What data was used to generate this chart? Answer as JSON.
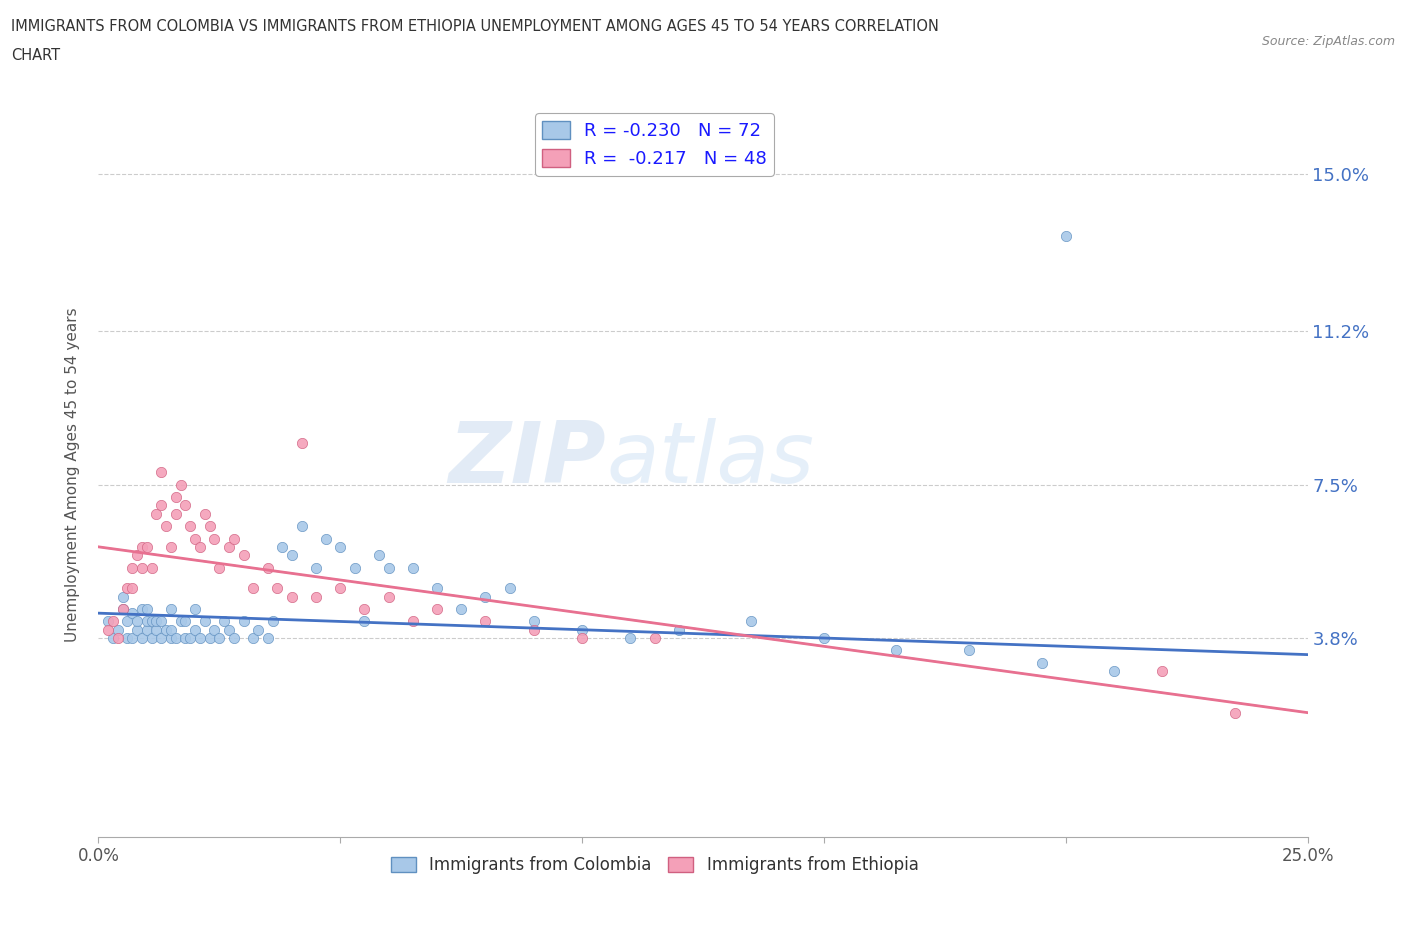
{
  "title_line1": "IMMIGRANTS FROM COLOMBIA VS IMMIGRANTS FROM ETHIOPIA UNEMPLOYMENT AMONG AGES 45 TO 54 YEARS CORRELATION",
  "title_line2": "CHART",
  "source": "Source: ZipAtlas.com",
  "ylabel": "Unemployment Among Ages 45 to 54 years",
  "xlim": [
    0.0,
    0.25
  ],
  "ylim": [
    -0.01,
    0.165
  ],
  "yticks": [
    0.038,
    0.075,
    0.112,
    0.15
  ],
  "ytick_labels": [
    "3.8%",
    "7.5%",
    "11.2%",
    "15.0%"
  ],
  "r_colombia": -0.23,
  "n_colombia": 72,
  "r_ethiopia": -0.217,
  "n_ethiopia": 48,
  "color_colombia": "#a8c8e8",
  "color_ethiopia": "#f4a0b8",
  "edge_colombia": "#6090c0",
  "edge_ethiopia": "#d06080",
  "trendline_colombia": "#4472c4",
  "trendline_ethiopia": "#e87090",
  "trendline_dashed": "#b0b8c8",
  "legend_colombia": "Immigrants from Colombia",
  "legend_ethiopia": "Immigrants from Ethiopia",
  "colombia_x": [
    0.002,
    0.003,
    0.004,
    0.005,
    0.005,
    0.006,
    0.006,
    0.007,
    0.007,
    0.008,
    0.008,
    0.009,
    0.009,
    0.01,
    0.01,
    0.01,
    0.011,
    0.011,
    0.012,
    0.012,
    0.013,
    0.013,
    0.014,
    0.015,
    0.015,
    0.015,
    0.016,
    0.017,
    0.018,
    0.018,
    0.019,
    0.02,
    0.02,
    0.021,
    0.022,
    0.023,
    0.024,
    0.025,
    0.026,
    0.027,
    0.028,
    0.03,
    0.032,
    0.033,
    0.035,
    0.036,
    0.038,
    0.04,
    0.042,
    0.045,
    0.047,
    0.05,
    0.053,
    0.055,
    0.058,
    0.06,
    0.065,
    0.07,
    0.075,
    0.08,
    0.085,
    0.09,
    0.1,
    0.11,
    0.12,
    0.135,
    0.15,
    0.165,
    0.18,
    0.195,
    0.21,
    0.2
  ],
  "colombia_y": [
    0.042,
    0.038,
    0.04,
    0.045,
    0.048,
    0.038,
    0.042,
    0.038,
    0.044,
    0.04,
    0.042,
    0.038,
    0.045,
    0.04,
    0.042,
    0.045,
    0.038,
    0.042,
    0.04,
    0.042,
    0.038,
    0.042,
    0.04,
    0.038,
    0.04,
    0.045,
    0.038,
    0.042,
    0.038,
    0.042,
    0.038,
    0.04,
    0.045,
    0.038,
    0.042,
    0.038,
    0.04,
    0.038,
    0.042,
    0.04,
    0.038,
    0.042,
    0.038,
    0.04,
    0.038,
    0.042,
    0.06,
    0.058,
    0.065,
    0.055,
    0.062,
    0.06,
    0.055,
    0.042,
    0.058,
    0.055,
    0.055,
    0.05,
    0.045,
    0.048,
    0.05,
    0.042,
    0.04,
    0.038,
    0.04,
    0.042,
    0.038,
    0.035,
    0.035,
    0.032,
    0.03,
    0.135
  ],
  "ethiopia_x": [
    0.002,
    0.003,
    0.004,
    0.005,
    0.006,
    0.007,
    0.007,
    0.008,
    0.009,
    0.009,
    0.01,
    0.011,
    0.012,
    0.013,
    0.013,
    0.014,
    0.015,
    0.016,
    0.016,
    0.017,
    0.018,
    0.019,
    0.02,
    0.021,
    0.022,
    0.023,
    0.024,
    0.025,
    0.027,
    0.028,
    0.03,
    0.032,
    0.035,
    0.037,
    0.04,
    0.042,
    0.045,
    0.05,
    0.055,
    0.06,
    0.065,
    0.07,
    0.08,
    0.09,
    0.1,
    0.115,
    0.22,
    0.235
  ],
  "ethiopia_y": [
    0.04,
    0.042,
    0.038,
    0.045,
    0.05,
    0.05,
    0.055,
    0.058,
    0.055,
    0.06,
    0.06,
    0.055,
    0.068,
    0.07,
    0.078,
    0.065,
    0.06,
    0.068,
    0.072,
    0.075,
    0.07,
    0.065,
    0.062,
    0.06,
    0.068,
    0.065,
    0.062,
    0.055,
    0.06,
    0.062,
    0.058,
    0.05,
    0.055,
    0.05,
    0.048,
    0.085,
    0.048,
    0.05,
    0.045,
    0.048,
    0.042,
    0.045,
    0.042,
    0.04,
    0.038,
    0.038,
    0.03,
    0.02
  ]
}
